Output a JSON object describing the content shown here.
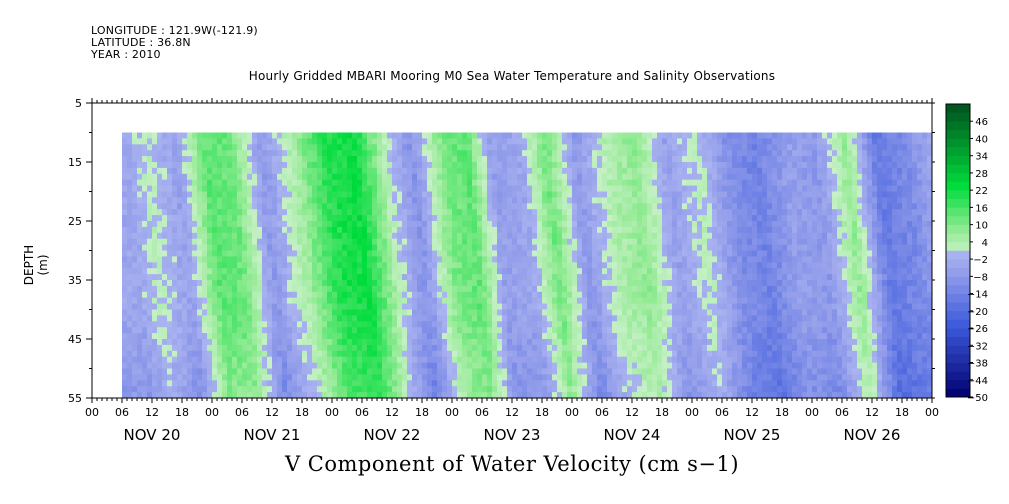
{
  "header": {
    "longitude": "LONGITUDE : 121.9W(-121.9)",
    "latitude": "LATITUDE : 36.8N",
    "year": "YEAR : 2010"
  },
  "chart_data": {
    "type": "heatmap",
    "title": "Hourly Gridded MBARI Mooring M0 Sea Water Temperature and Salinity Observations",
    "bottom_title": "V Component of Water Velocity (cm s−1)",
    "ylabel": "DEPTH (m)",
    "xlabel": "",
    "y_ticks": [
      "5",
      "15",
      "25",
      "35",
      "45",
      "55"
    ],
    "y_range": [
      5,
      55
    ],
    "y_inverted": true,
    "x_hour_ticks": [
      "00",
      "06",
      "12",
      "18",
      "00",
      "06",
      "12",
      "18",
      "00",
      "06",
      "12",
      "18",
      "00",
      "06",
      "12",
      "18",
      "00",
      "06",
      "12",
      "18",
      "00",
      "06",
      "12",
      "18",
      "00",
      "06",
      "12",
      "18",
      "00"
    ],
    "x_day_labels": [
      "NOV 20",
      "NOV 21",
      "NOV 22",
      "NOV 23",
      "NOV 24",
      "NOV 25",
      "NOV 26"
    ],
    "data_depth_range": [
      10,
      55
    ],
    "data_time_range_hours_from_nov20_00": [
      6,
      168
    ],
    "colorbar": {
      "levels": [
        "46",
        "40",
        "34",
        "28",
        "22",
        "16",
        "10",
        "4",
        "−2",
        "−8",
        "−14",
        "−20",
        "−26",
        "−32",
        "−38",
        "−44",
        "−50"
      ],
      "min": -50,
      "max": 52,
      "step": 3
    },
    "series_profile": [
      {
        "hour": 6,
        "v": -4
      },
      {
        "hour": 10,
        "v": 2
      },
      {
        "hour": 16,
        "v": -6
      },
      {
        "hour": 22,
        "v": 14
      },
      {
        "hour": 27,
        "v": 12
      },
      {
        "hour": 33,
        "v": -8
      },
      {
        "hour": 40,
        "v": 6
      },
      {
        "hour": 46,
        "v": 20
      },
      {
        "hour": 52,
        "v": 22
      },
      {
        "hour": 58,
        "v": 2
      },
      {
        "hour": 63,
        "v": -10
      },
      {
        "hour": 69,
        "v": 10
      },
      {
        "hour": 74,
        "v": 14
      },
      {
        "hour": 79,
        "v": -6
      },
      {
        "hour": 85,
        "v": -4
      },
      {
        "hour": 90,
        "v": 12
      },
      {
        "hour": 96,
        "v": -8
      },
      {
        "hour": 102,
        "v": 4
      },
      {
        "hour": 108,
        "v": 8
      },
      {
        "hour": 114,
        "v": -6
      },
      {
        "hour": 120,
        "v": 2
      },
      {
        "hour": 126,
        "v": -10
      },
      {
        "hour": 132,
        "v": -14
      },
      {
        "hour": 138,
        "v": -6
      },
      {
        "hour": 144,
        "v": -8
      },
      {
        "hour": 150,
        "v": 8
      },
      {
        "hour": 156,
        "v": -16
      },
      {
        "hour": 162,
        "v": -12
      },
      {
        "hour": 168,
        "v": -2
      }
    ]
  }
}
